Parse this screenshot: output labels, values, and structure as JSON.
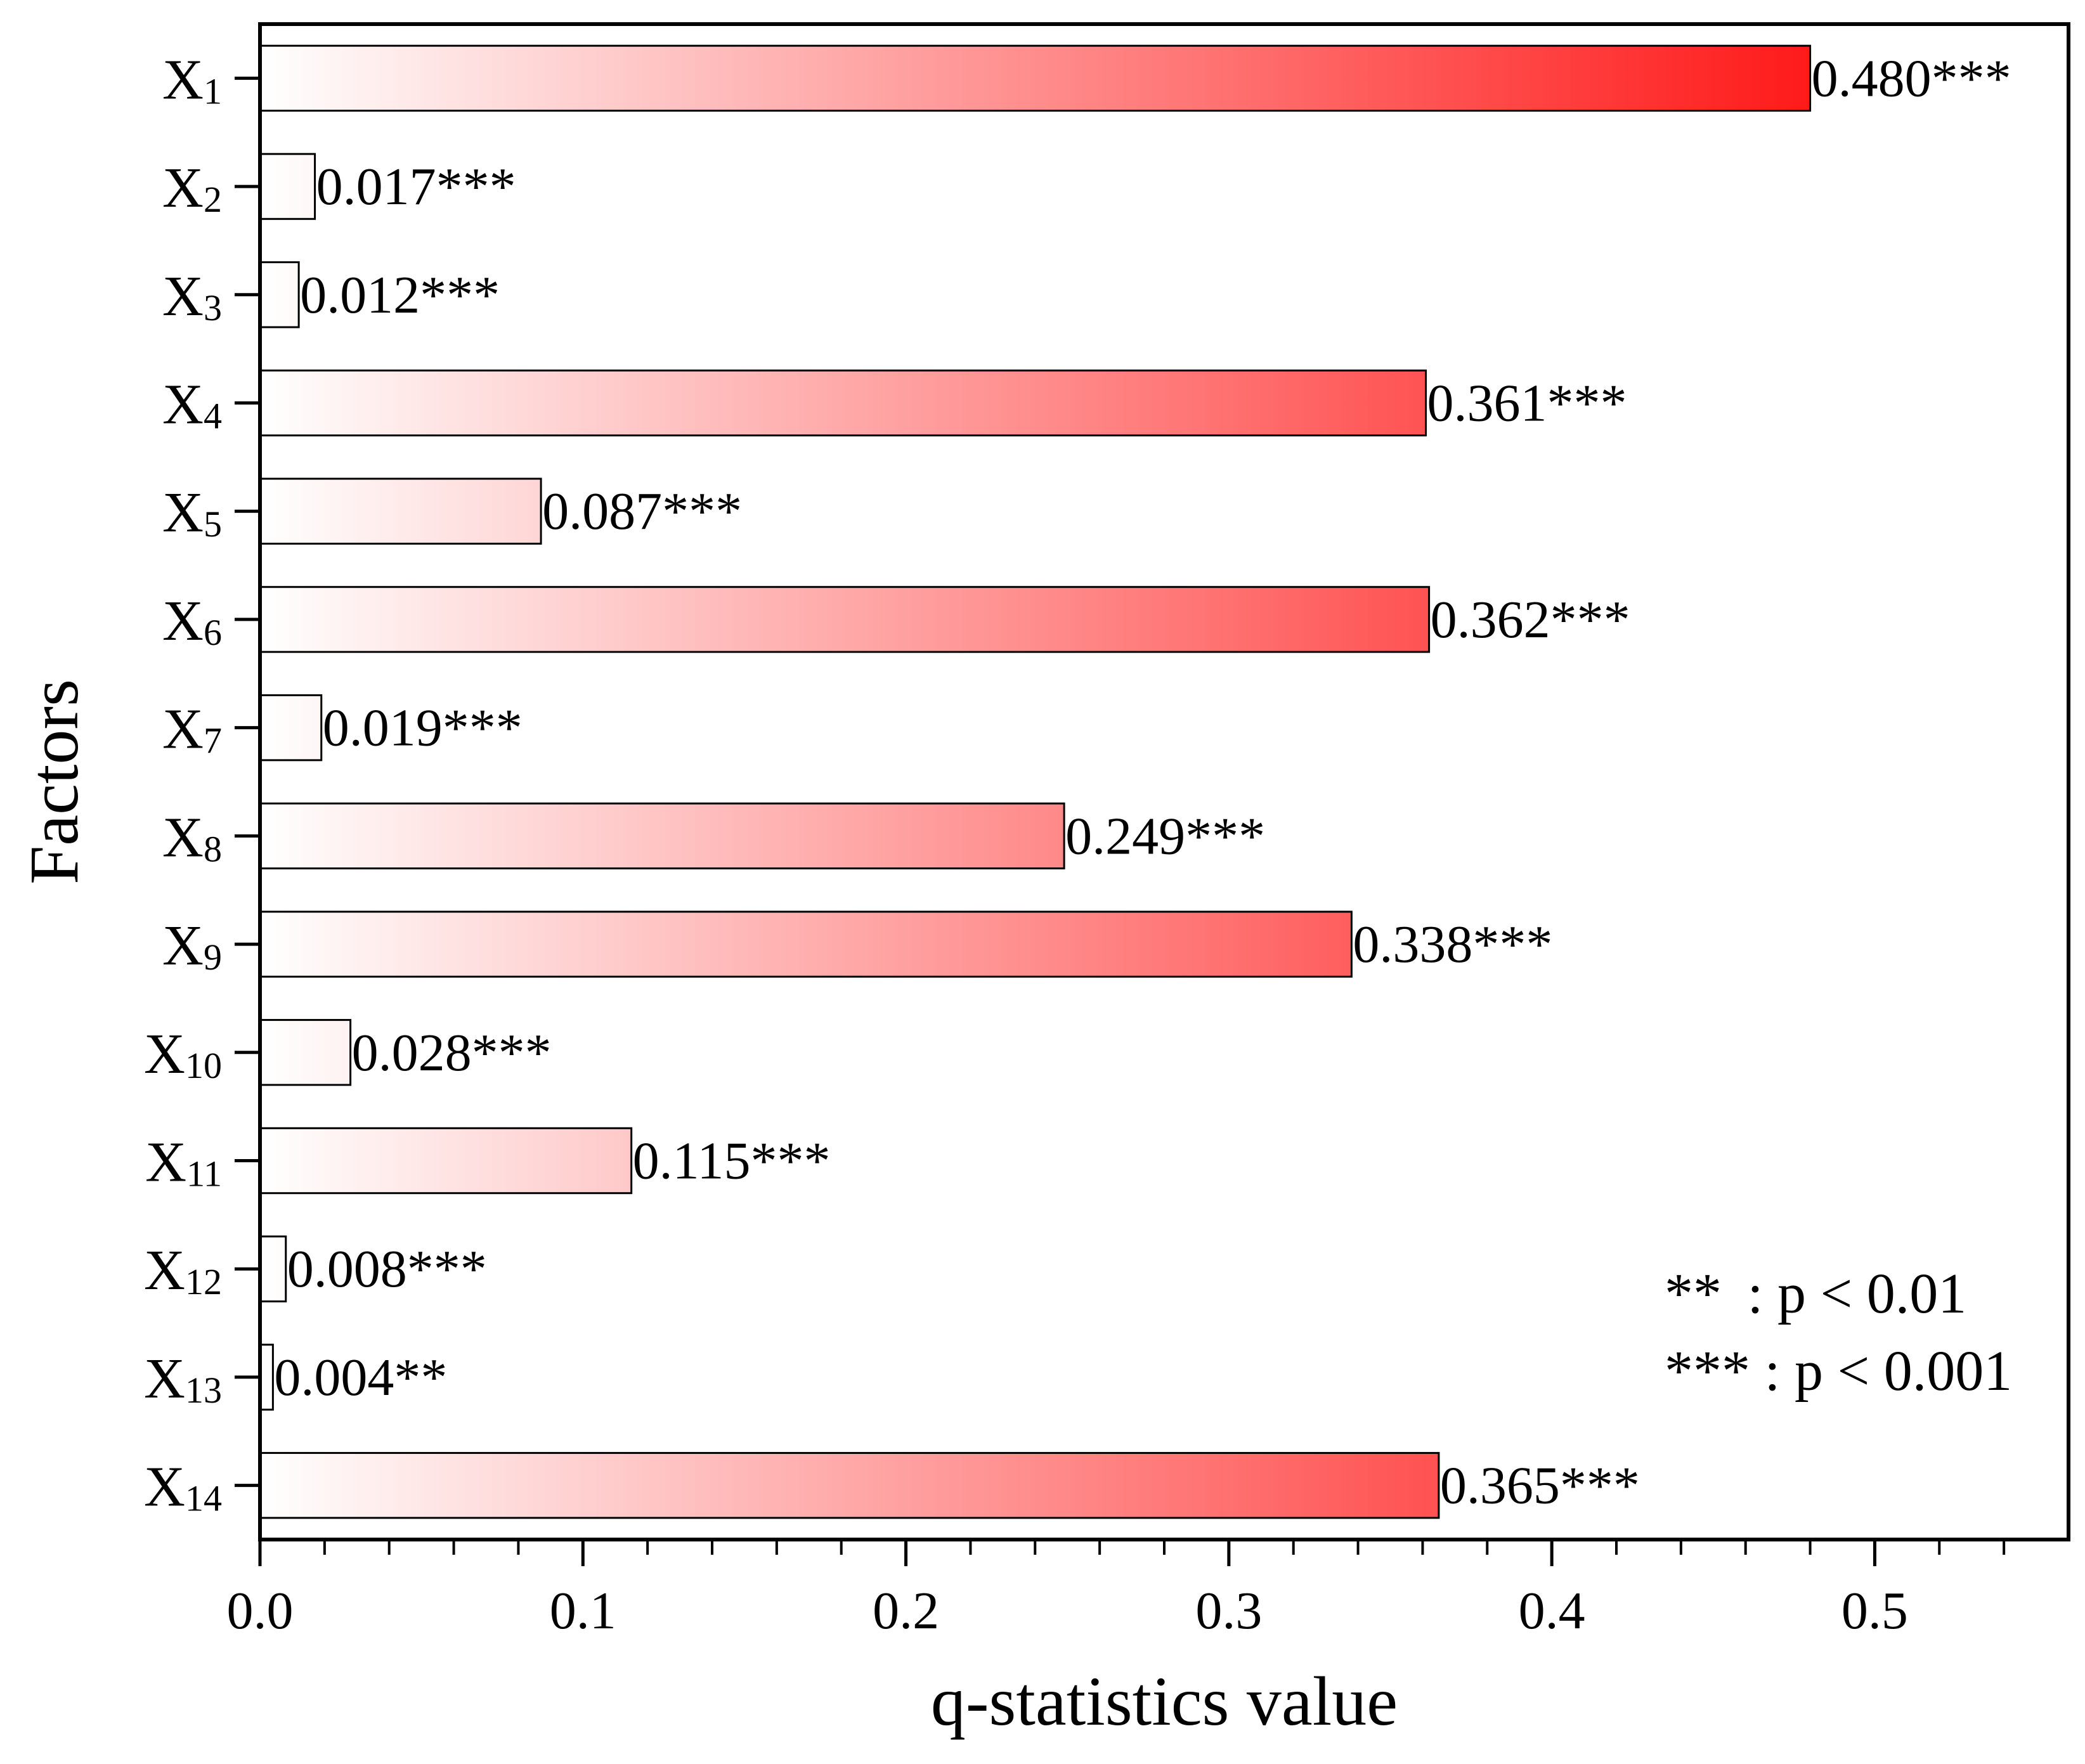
{
  "chart_data": {
    "type": "bar",
    "orientation": "horizontal",
    "title": "",
    "xlabel": "q-statistics value",
    "ylabel": "Factors",
    "xlim": [
      0,
      0.56
    ],
    "x_ticks": [
      "0.0",
      "0.1",
      "0.2",
      "0.3",
      "0.4",
      "0.5"
    ],
    "x_tick_values": [
      0,
      0.1,
      0.2,
      0.3,
      0.4,
      0.5
    ],
    "categories": [
      {
        "base": "X",
        "sub": "1"
      },
      {
        "base": "X",
        "sub": "2"
      },
      {
        "base": "X",
        "sub": "3"
      },
      {
        "base": "X",
        "sub": "4"
      },
      {
        "base": "X",
        "sub": "5"
      },
      {
        "base": "X",
        "sub": "6"
      },
      {
        "base": "X",
        "sub": "7"
      },
      {
        "base": "X",
        "sub": "8"
      },
      {
        "base": "X",
        "sub": "9"
      },
      {
        "base": "X",
        "sub": "10"
      },
      {
        "base": "X",
        "sub": "11"
      },
      {
        "base": "X",
        "sub": "12"
      },
      {
        "base": "X",
        "sub": "13"
      },
      {
        "base": "X",
        "sub": "14"
      }
    ],
    "values": [
      0.48,
      0.017,
      0.012,
      0.361,
      0.087,
      0.362,
      0.019,
      0.249,
      0.338,
      0.028,
      0.115,
      0.008,
      0.004,
      0.365
    ],
    "value_labels": [
      "0.480***",
      "0.017***",
      "0.012***",
      "0.361***",
      "0.087***",
      "0.362***",
      "0.019***",
      "0.249***",
      "0.338***",
      "0.028***",
      "0.115***",
      "0.008***",
      "0.004**",
      "0.365***"
    ],
    "legend": [
      {
        "symbol": "**",
        "text": ": p < 0.01"
      },
      {
        "symbol": "***",
        "text": ": p < 0.001"
      }
    ],
    "legend_position": "bottom-right",
    "grid": false,
    "colors": {
      "gradient_start": "#ffffff",
      "gradient_end": "#ff1a1a",
      "bar_edge": "#000000",
      "axis": "#000000"
    }
  }
}
